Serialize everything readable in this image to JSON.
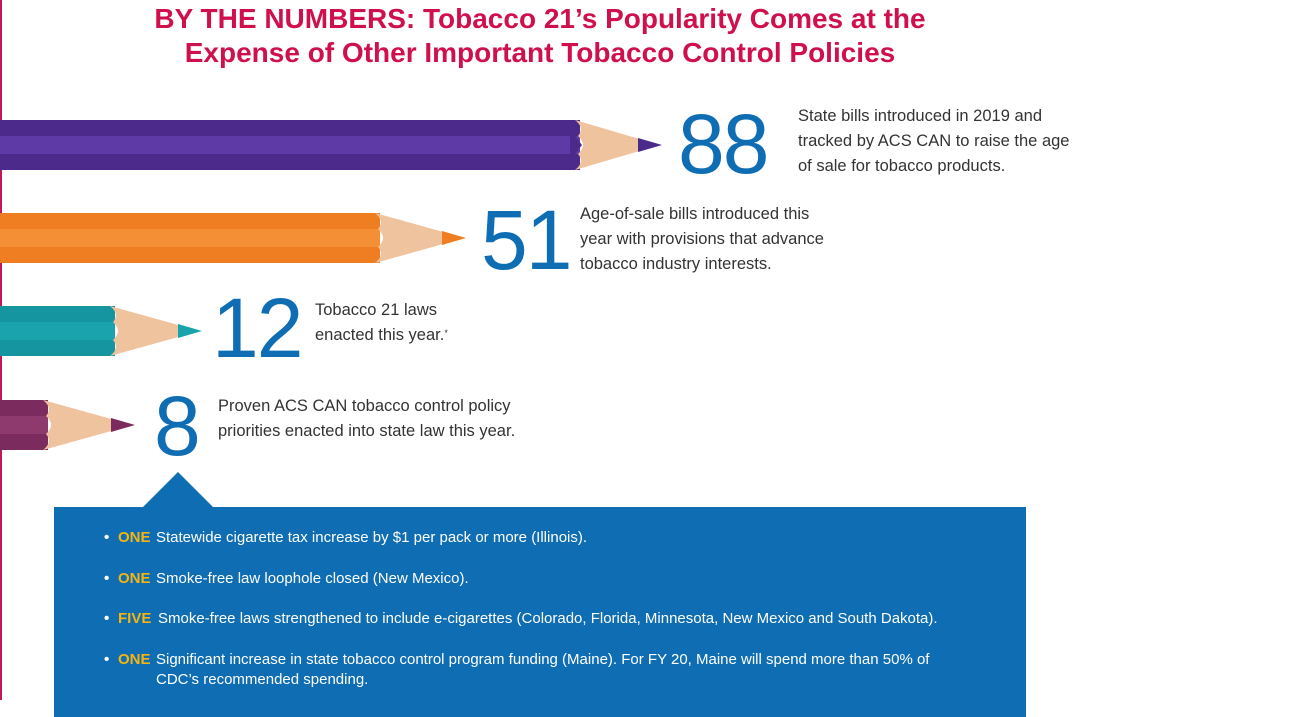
{
  "title": {
    "line1": "BY THE NUMBERS: Tobacco 21’s Popularity Comes at the",
    "line2": "Expense of Other Important Tobacco Control Policies"
  },
  "stats": [
    {
      "number": "88",
      "lines": [
        "State bills introduced in 2019 and",
        "tracked by ACS CAN to raise the age",
        "of sale for tobacco products."
      ],
      "color": "#4b2a8c"
    },
    {
      "number": "51",
      "lines": [
        "Age-of-sale bills introduced this",
        "year with provisions that advance",
        "tobacco industry interests."
      ],
      "color": "#ef7d22"
    },
    {
      "number": "12",
      "lines": [
        "Tobacco 21 laws",
        "enacted this year."
      ],
      "footnote_mark": "*",
      "color": "#1aa3ad"
    },
    {
      "number": "8",
      "lines": [
        "Proven ACS CAN tobacco control policy",
        "priorities enacted into state law this year."
      ],
      "color": "#7b2b5e"
    }
  ],
  "bullets": [
    {
      "count": "ONE",
      "text": "Statewide cigarette tax increase by $1 per pack or more (Illinois)."
    },
    {
      "count": "ONE",
      "text": "Smoke-free law loophole closed (New Mexico)."
    },
    {
      "count": "FIVE",
      "text": "Smoke-free laws strengthened to include e-cigarettes (Colorado, Florida, Minnesota, New Mexico and South Dakota)."
    },
    {
      "count": "ONE",
      "text": "Significant increase in state tobacco control program funding (Maine). For FY 20, Maine will spend more than 50% of CDC’s recommended spending."
    }
  ],
  "bullet_glyph": "•",
  "colors": {
    "title": "#d0104c",
    "numbers": "#0f6db3",
    "panel": "#0f6db3",
    "highlight": "#f5b50f"
  }
}
